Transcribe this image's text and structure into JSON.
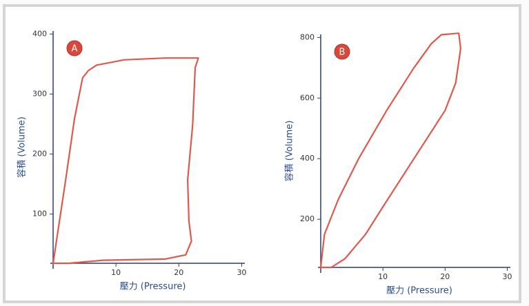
{
  "chart_data": [
    {
      "type": "line",
      "label": "A",
      "xlabel": "壓力 (Pressure)",
      "ylabel": "容積 (Volume)",
      "xlim": [
        0,
        30.5
      ],
      "ylim": [
        18,
        405
      ],
      "xticks": [
        10,
        20,
        30
      ],
      "yticks": [
        100,
        200,
        300,
        400
      ],
      "series": [
        {
          "color": "#e0574b",
          "x": [
            0,
            2,
            3.4,
            4.7,
            5.6,
            6.9,
            11.3,
            17.8,
            23.1,
            22.6,
            22.2,
            21.4,
            21.6,
            22,
            21.1,
            17.8,
            8,
            2.5
          ],
          "values": [
            18,
            157,
            259,
            327,
            339,
            348,
            357,
            360,
            360,
            344,
            248,
            157,
            89,
            55,
            32,
            25,
            23,
            18
          ]
        }
      ]
    },
    {
      "type": "line",
      "label": "B",
      "xlabel": "壓力 (Pressure)",
      "ylabel": "容積 (Volume)",
      "xlim": [
        0,
        30.5
      ],
      "ylim": [
        41,
        810
      ],
      "xticks": [
        10,
        20,
        30
      ],
      "yticks": [
        200,
        400,
        600,
        800
      ],
      "series": [
        {
          "color": "#e0574b",
          "x": [
            0,
            0.6,
            2.8,
            6.1,
            10.6,
            15,
            17.8,
            19.4,
            22.2,
            22.5,
            21.7,
            20,
            15,
            10,
            7.2,
            3.9,
            1.7
          ],
          "values": [
            41,
            150,
            264,
            400,
            559,
            700,
            780,
            809,
            814,
            764,
            650,
            559,
            400,
            241,
            150,
            70,
            41
          ]
        }
      ]
    }
  ]
}
